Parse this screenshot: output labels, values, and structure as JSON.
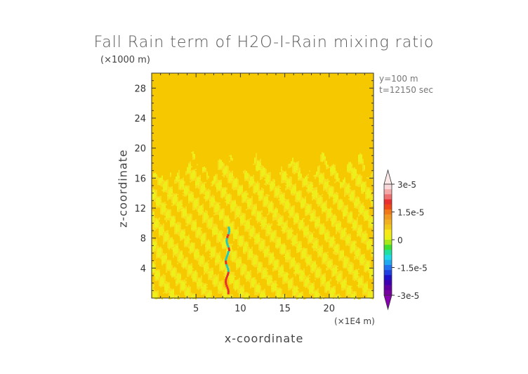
{
  "chart_data": {
    "type": "heatmap",
    "title": "Fall Rain term of H2O-I-Rain mixing ratio",
    "xlabel": "x-coordinate",
    "ylabel": "z-coordinate",
    "x_scale_note": "(×1E4 m)",
    "y_scale_note": "(×1000 m)",
    "annotations": [
      "y=100 m",
      "t=12150 sec"
    ],
    "xlim": [
      0,
      25
    ],
    "ylim": [
      0,
      30
    ],
    "x_ticks": [
      5,
      10,
      15,
      20
    ],
    "y_ticks": [
      4,
      8,
      12,
      16,
      20,
      24,
      28
    ],
    "background_value": 0,
    "colorbar": {
      "labels": [
        "3e-5",
        "1.5e-5",
        "0",
        "-1.5e-5",
        "-3e-5"
      ],
      "label_values": [
        3e-05,
        1.5e-05,
        0,
        -1.5e-05,
        -3e-05
      ],
      "colors_top_to_bottom": [
        "#f8d8d8",
        "#f4a8a8",
        "#ee7070",
        "#e83030",
        "#f04818",
        "#f07818",
        "#f09820",
        "#f0b020",
        "#f0c818",
        "#f8e818",
        "#e8f018",
        "#a8e818",
        "#40e030",
        "#20e0a0",
        "#20d8e8",
        "#20a8f0",
        "#2070f0",
        "#2040e0",
        "#2010c8",
        "#4000b0",
        "#6000a0",
        "#7800a0"
      ],
      "extend_top_color": "#fde8e8",
      "extend_bottom_color": "#8800b0"
    },
    "field_colors": {
      "zero_fill": "#f5c800",
      "near_zero": "#f6de1c",
      "small_positive": "#eef01c",
      "positive_streak": "#e83030",
      "negative_streak": "#20c8c0"
    },
    "features": {
      "active_layer_top": 17.5,
      "streak_x": 8.5,
      "streak_z_range": [
        0.5,
        9.5
      ]
    }
  }
}
